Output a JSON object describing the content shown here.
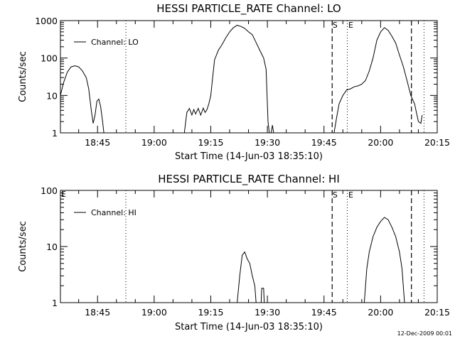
{
  "chart_data": [
    {
      "type": "line",
      "title": "HESSI PARTICLE_RATE Channel: LO",
      "xlabel": "Start Time (14-Jun-03 18:35:10)",
      "ylabel": "Counts/sec",
      "yscale": "log",
      "ylim": [
        1,
        1000
      ],
      "xlim": [
        "18:35:10",
        "20:15:00"
      ],
      "x_ticks": [
        "18:45",
        "19:00",
        "19:15",
        "19:30",
        "19:45",
        "20:00",
        "20:15"
      ],
      "y_ticks": [
        "1",
        "10",
        "100",
        "1000"
      ],
      "legend": "top-left",
      "series": [
        {
          "name": "Channel: LO",
          "segments": [
            [
              [
                "18:35:10",
                10
              ],
              [
                "18:36:00",
                22
              ],
              [
                "18:37:00",
                42
              ],
              [
                "18:38:00",
                58
              ],
              [
                "18:39:00",
                62
              ],
              [
                "18:40:00",
                58
              ],
              [
                "18:41:00",
                45
              ],
              [
                "18:42:00",
                30
              ],
              [
                "18:42:40",
                15
              ],
              [
                "18:43:20",
                4
              ],
              [
                "18:43:50",
                1.8
              ],
              [
                "18:44:20",
                3
              ],
              [
                "18:44:50",
                7
              ],
              [
                "18:45:20",
                8
              ],
              [
                "18:45:50",
                5
              ],
              [
                "18:46:20",
                2
              ],
              [
                "18:46:40",
                1
              ]
            ],
            [
              [
                "19:08:00",
                1
              ],
              [
                "19:08:40",
                3.5
              ],
              [
                "19:09:20",
                4.5
              ],
              [
                "19:10:00",
                3
              ],
              [
                "19:10:30",
                4.2
              ],
              [
                "19:11:00",
                3.2
              ],
              [
                "19:11:40",
                4.5
              ],
              [
                "19:12:20",
                3
              ],
              [
                "19:13:00",
                4.6
              ],
              [
                "19:13:30",
                3.5
              ],
              [
                "19:14:00",
                4.2
              ],
              [
                "19:14:30",
                6
              ],
              [
                "19:15:00",
                10
              ],
              [
                "19:15:30",
                30
              ],
              [
                "19:16:00",
                90
              ],
              [
                "19:17:00",
                160
              ],
              [
                "19:18:00",
                230
              ],
              [
                "19:19:00",
                350
              ],
              [
                "19:20:00",
                500
              ],
              [
                "19:21:00",
                650
              ],
              [
                "19:22:00",
                750
              ],
              [
                "19:23:00",
                700
              ],
              [
                "19:24:00",
                620
              ],
              [
                "19:25:00",
                500
              ],
              [
                "19:26:00",
                420
              ],
              [
                "19:27:00",
                260
              ],
              [
                "19:28:00",
                160
              ],
              [
                "19:29:00",
                100
              ],
              [
                "19:29:40",
                50
              ],
              [
                "19:30:10",
                2
              ],
              [
                "19:30:30",
                1
              ]
            ],
            [
              [
                "19:31:00",
                1
              ],
              [
                "19:31:20",
                1.6
              ],
              [
                "19:31:40",
                1
              ]
            ],
            [
              [
                "19:47:40",
                1
              ],
              [
                "19:48:20",
                2.5
              ],
              [
                "19:49:00",
                6
              ],
              [
                "19:50:00",
                10
              ],
              [
                "19:51:00",
                14
              ],
              [
                "19:52:00",
                15
              ],
              [
                "19:53:00",
                17
              ],
              [
                "19:54:00",
                18
              ],
              [
                "19:55:00",
                20
              ],
              [
                "19:56:00",
                25
              ],
              [
                "19:57:00",
                45
              ],
              [
                "19:58:00",
                100
              ],
              [
                "19:59:00",
                300
              ],
              [
                "20:00:00",
                500
              ],
              [
                "20:01:00",
                650
              ],
              [
                "20:02:00",
                550
              ],
              [
                "20:03:00",
                380
              ],
              [
                "20:04:00",
                250
              ],
              [
                "20:05:00",
                120
              ],
              [
                "20:06:00",
                60
              ],
              [
                "20:07:00",
                25
              ],
              [
                "20:08:00",
                10
              ],
              [
                "20:09:00",
                6
              ],
              [
                "20:10:00",
                2
              ],
              [
                "20:10:40",
                1.8
              ],
              [
                "20:11:00",
                3
              ]
            ]
          ]
        }
      ],
      "markers": {
        "dashed": [
          {
            "t": "19:47:10",
            "label": "S"
          },
          {
            "t": "20:08:10",
            "label": ""
          }
        ],
        "dotted": [
          {
            "t": "18:52:30",
            "label": ""
          },
          {
            "t": "19:51:10",
            "label": "E"
          },
          {
            "t": "20:11:30",
            "label": ""
          }
        ]
      }
    },
    {
      "type": "line",
      "title": "HESSI PARTICLE_RATE Channel: HI",
      "xlabel": "Start Time (14-Jun-03 18:35:10)",
      "ylabel": "Counts/sec",
      "yscale": "log",
      "ylim": [
        1,
        100
      ],
      "xlim": [
        "18:35:10",
        "20:15:00"
      ],
      "x_ticks": [
        "18:45",
        "19:00",
        "19:15",
        "19:30",
        "19:45",
        "20:00",
        "20:15"
      ],
      "y_ticks": [
        "1",
        "10",
        "100"
      ],
      "legend": "top-left",
      "series": [
        {
          "name": "Channel: HI",
          "segments": [
            [
              [
                "19:22:00",
                1
              ],
              [
                "19:22:40",
                3
              ],
              [
                "19:23:20",
                7
              ],
              [
                "19:24:00",
                8
              ],
              [
                "19:24:40",
                6
              ],
              [
                "19:25:20",
                5
              ],
              [
                "19:26:00",
                3
              ],
              [
                "19:26:40",
                2
              ],
              [
                "19:27:00",
                1
              ]
            ],
            [
              [
                "19:28:20",
                1
              ],
              [
                "19:28:30",
                1.8
              ],
              [
                "19:29:00",
                1.8
              ],
              [
                "19:29:10",
                1
              ]
            ],
            [
              [
                "19:55:40",
                1
              ],
              [
                "19:56:20",
                4
              ],
              [
                "19:57:00",
                8
              ],
              [
                "19:58:00",
                15
              ],
              [
                "19:59:00",
                22
              ],
              [
                "20:00:00",
                28
              ],
              [
                "20:01:00",
                33
              ],
              [
                "20:02:00",
                30
              ],
              [
                "20:03:00",
                22
              ],
              [
                "20:04:00",
                15
              ],
              [
                "20:05:00",
                8
              ],
              [
                "20:05:40",
                4
              ],
              [
                "20:06:20",
                1
              ]
            ]
          ]
        }
      ],
      "markers": {
        "dashed": [
          {
            "t": "19:47:10",
            "label": "S"
          },
          {
            "t": "20:08:10",
            "label": ""
          }
        ],
        "dotted": [
          {
            "t": "18:52:30",
            "label": ""
          },
          {
            "t": "19:51:10",
            "label": "E"
          },
          {
            "t": "20:11:30",
            "label": ""
          }
        ],
        "edge_label": "E"
      }
    }
  ],
  "footer": {
    "timestamp": "12-Dec-2009 00:01"
  }
}
